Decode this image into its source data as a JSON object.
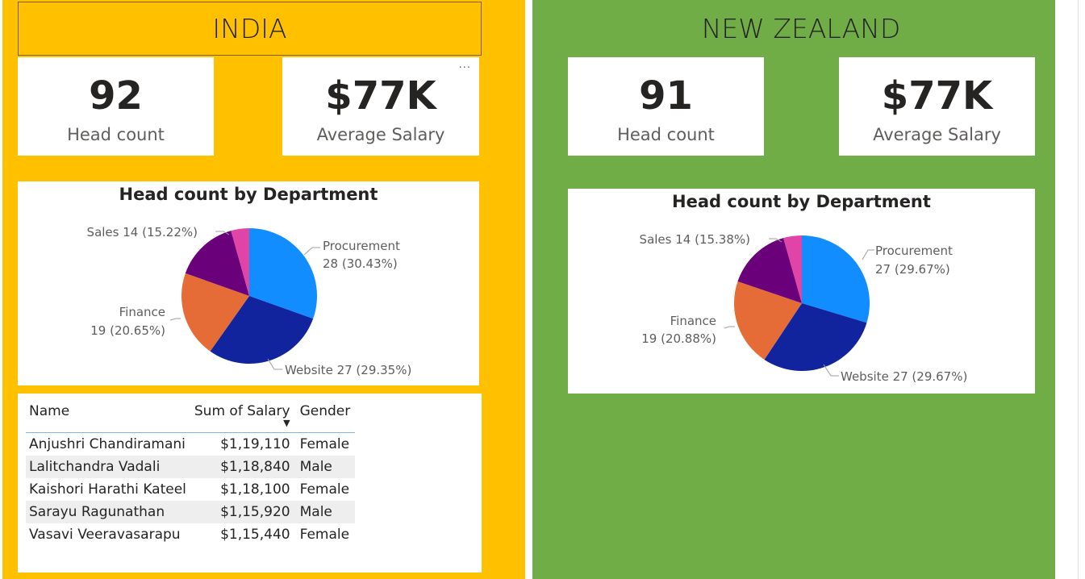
{
  "india": {
    "title": "INDIA",
    "headcount_value": "92",
    "headcount_label": "Head count",
    "salary_value": "$77K",
    "salary_label": "Average Salary",
    "more_icon": "more-options-icon",
    "chart_data": {
      "type": "pie",
      "title": "Head count by Department",
      "slices": [
        {
          "name": "Procurement",
          "value": 28,
          "percent": "30.43%",
          "color": "#118dff"
        },
        {
          "name": "Website",
          "value": 27,
          "percent": "29.35%",
          "color": "#12239e"
        },
        {
          "name": "Finance",
          "value": 19,
          "percent": "20.65%",
          "color": "#e66c37"
        },
        {
          "name": "Sales",
          "value": 14,
          "percent": "15.22%",
          "color": "#6b007b"
        },
        {
          "name": "",
          "value": 4,
          "percent": "",
          "color": "#e044a7"
        }
      ],
      "labels": {
        "procurement_1": "Procurement",
        "procurement_2": "28 (30.43%)",
        "website": "Website 27 (29.35%)",
        "finance_1": "Finance",
        "finance_2": "19 (20.65%)",
        "sales": "Sales 14 (15.22%)"
      }
    },
    "table": {
      "headers": {
        "name": "Name",
        "salary": "Sum of Salary",
        "gender": "Gender"
      },
      "rows": [
        {
          "name": "Anjushri Chandiramani",
          "salary": "$1,19,110",
          "gender": "Female"
        },
        {
          "name": "Lalitchandra Vadali",
          "salary": "$1,18,840",
          "gender": "Male"
        },
        {
          "name": "Kaishori Harathi Kateel",
          "salary": "$1,18,100",
          "gender": "Female"
        },
        {
          "name": "Sarayu Ragunathan",
          "salary": "$1,15,920",
          "gender": "Male"
        },
        {
          "name": "Vasavi Veeravasarapu",
          "salary": "$1,15,440",
          "gender": "Female"
        }
      ]
    }
  },
  "nz": {
    "title": "NEW ZEALAND",
    "headcount_value": "91",
    "headcount_label": "Head count",
    "salary_value": "$77K",
    "salary_label": "Average Salary",
    "chart_data": {
      "type": "pie",
      "title": "Head count by Department",
      "slices": [
        {
          "name": "Procurement",
          "value": 27,
          "percent": "29.67%",
          "color": "#118dff"
        },
        {
          "name": "Website",
          "value": 27,
          "percent": "29.67%",
          "color": "#12239e"
        },
        {
          "name": "Finance",
          "value": 19,
          "percent": "20.88%",
          "color": "#e66c37"
        },
        {
          "name": "Sales",
          "value": 14,
          "percent": "15.38%",
          "color": "#6b007b"
        },
        {
          "name": "",
          "value": 4,
          "percent": "",
          "color": "#e044a7"
        }
      ],
      "labels": {
        "procurement_1": "Procurement",
        "procurement_2": "27 (29.67%)",
        "website": "Website 27 (29.67%)",
        "finance_1": "Finance",
        "finance_2": "19 (20.88%)",
        "sales": "Sales 14 (15.38%)"
      }
    }
  }
}
